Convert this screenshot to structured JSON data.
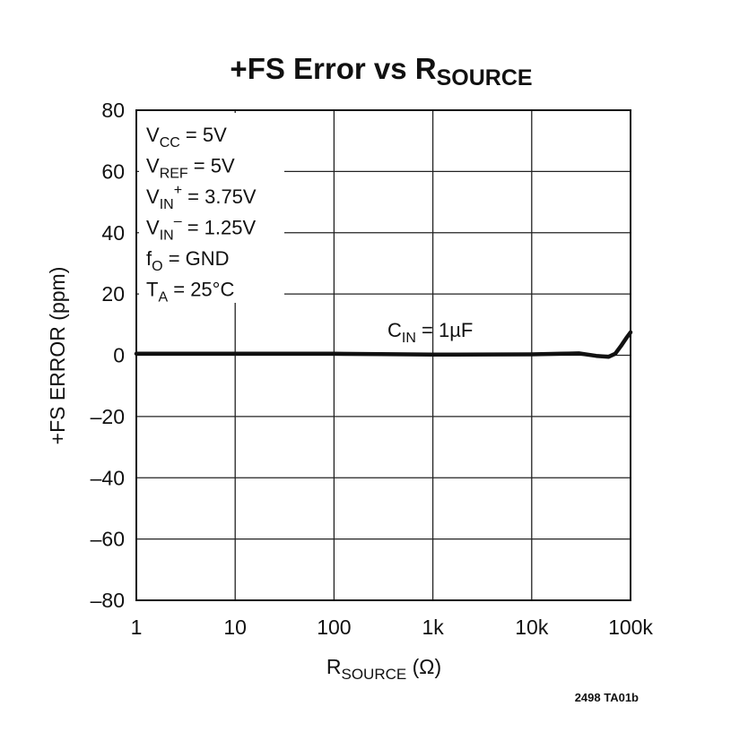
{
  "chart_data": {
    "type": "line",
    "title": {
      "main": "+FS Error vs R",
      "sub": "SOURCE"
    },
    "xlabel": {
      "main": "R",
      "sub": "SOURCE",
      "unit": " (Ω)"
    },
    "ylabel": "+FS ERROR (ppm)",
    "x_scale": "log",
    "xlim": [
      1,
      100000
    ],
    "ylim": [
      -80,
      80
    ],
    "grid": true,
    "x_ticks": [
      1,
      10,
      100,
      1000,
      10000,
      100000
    ],
    "x_tick_labels": [
      "1",
      "10",
      "100",
      "1k",
      "10k",
      "100k"
    ],
    "y_ticks": [
      80,
      60,
      40,
      20,
      0,
      -20,
      -40,
      -60,
      -80
    ],
    "y_tick_labels": [
      "80",
      "60",
      "40",
      "20",
      "0",
      "–20",
      "–40",
      "–60",
      "–80"
    ],
    "conditions": [
      {
        "main": "V",
        "sub": "CC",
        "sup": "",
        "rest": " = 5V"
      },
      {
        "main": "V",
        "sub": "REF",
        "sup": "",
        "rest": " = 5V"
      },
      {
        "main": "V",
        "sub": "IN",
        "sup": "+",
        "rest": " = 3.75V"
      },
      {
        "main": "V",
        "sub": "IN",
        "sup": "–",
        "rest": " = 1.25V"
      },
      {
        "main": "f",
        "sub": "O",
        "sup": "",
        "rest": " = GND"
      },
      {
        "main": "T",
        "sub": "A",
        "sup": "",
        "rest": " = 25°C"
      }
    ],
    "series": [
      {
        "label": {
          "main": "C",
          "sub": "IN",
          "rest": " = 1µF"
        },
        "x": [
          1,
          10,
          100,
          1000,
          10000,
          20000,
          30000,
          45000,
          60000,
          70000,
          80000,
          90000,
          100000
        ],
        "y": [
          0.5,
          0.5,
          0.5,
          0.2,
          0.3,
          0.5,
          0.6,
          -0.2,
          -0.5,
          0.5,
          3,
          5.5,
          7.5
        ]
      }
    ],
    "figure_id": "2498 TA01b"
  }
}
